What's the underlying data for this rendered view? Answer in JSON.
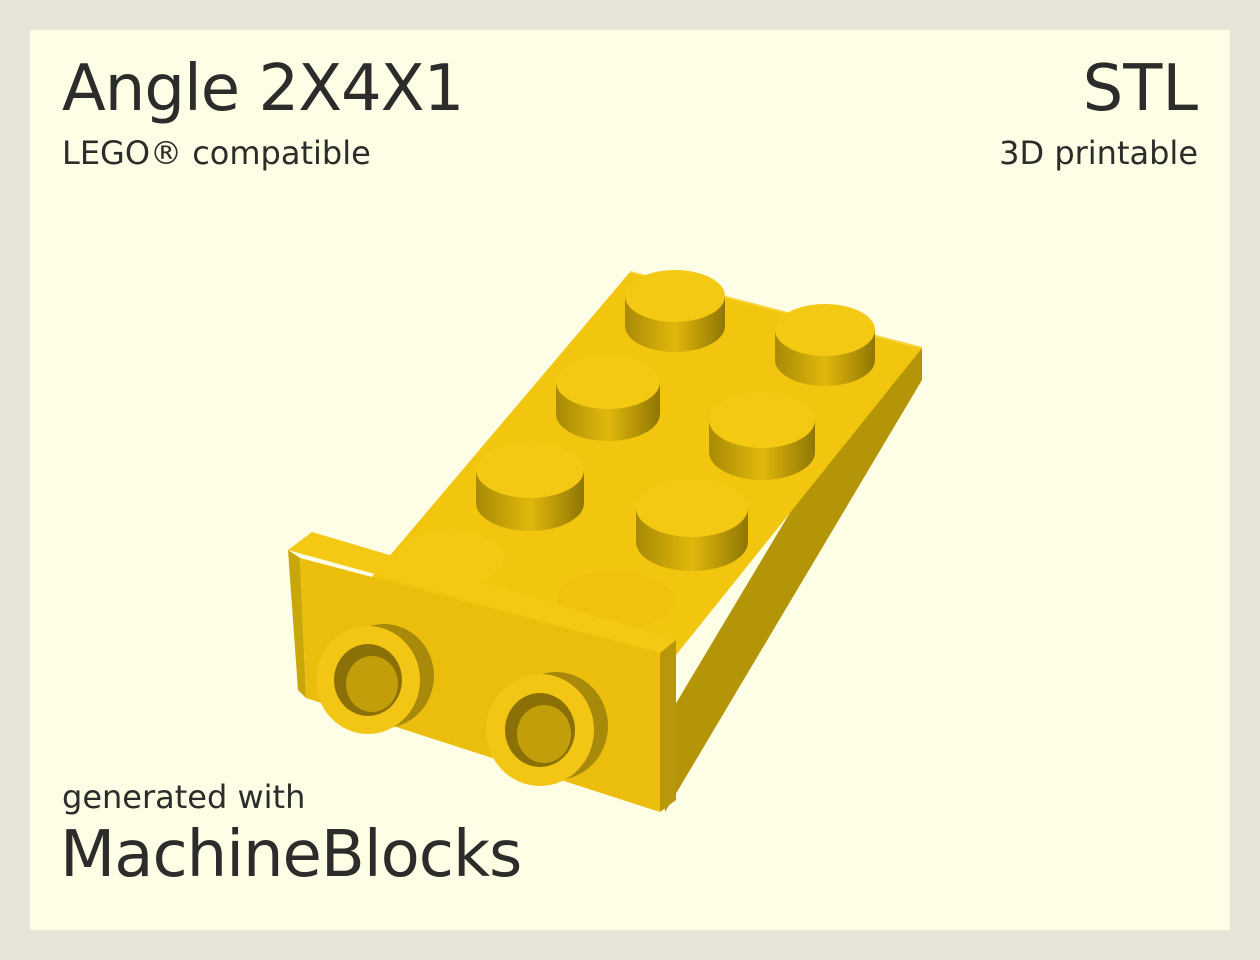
{
  "header": {
    "title": "Angle 2X4X1",
    "subtitle": "LEGO® compatible",
    "format": "STL",
    "format_sub": "3D printable"
  },
  "footer": {
    "generated_label": "generated with",
    "brand": "MachineBlocks"
  },
  "colors": {
    "background": "#e6e4d6",
    "card": "#fefee6",
    "text": "#2c2c2a",
    "brick": "#f2c50f"
  },
  "render": {
    "part": "angle bracket brick",
    "studs_top": 8,
    "studs_front": 2
  }
}
